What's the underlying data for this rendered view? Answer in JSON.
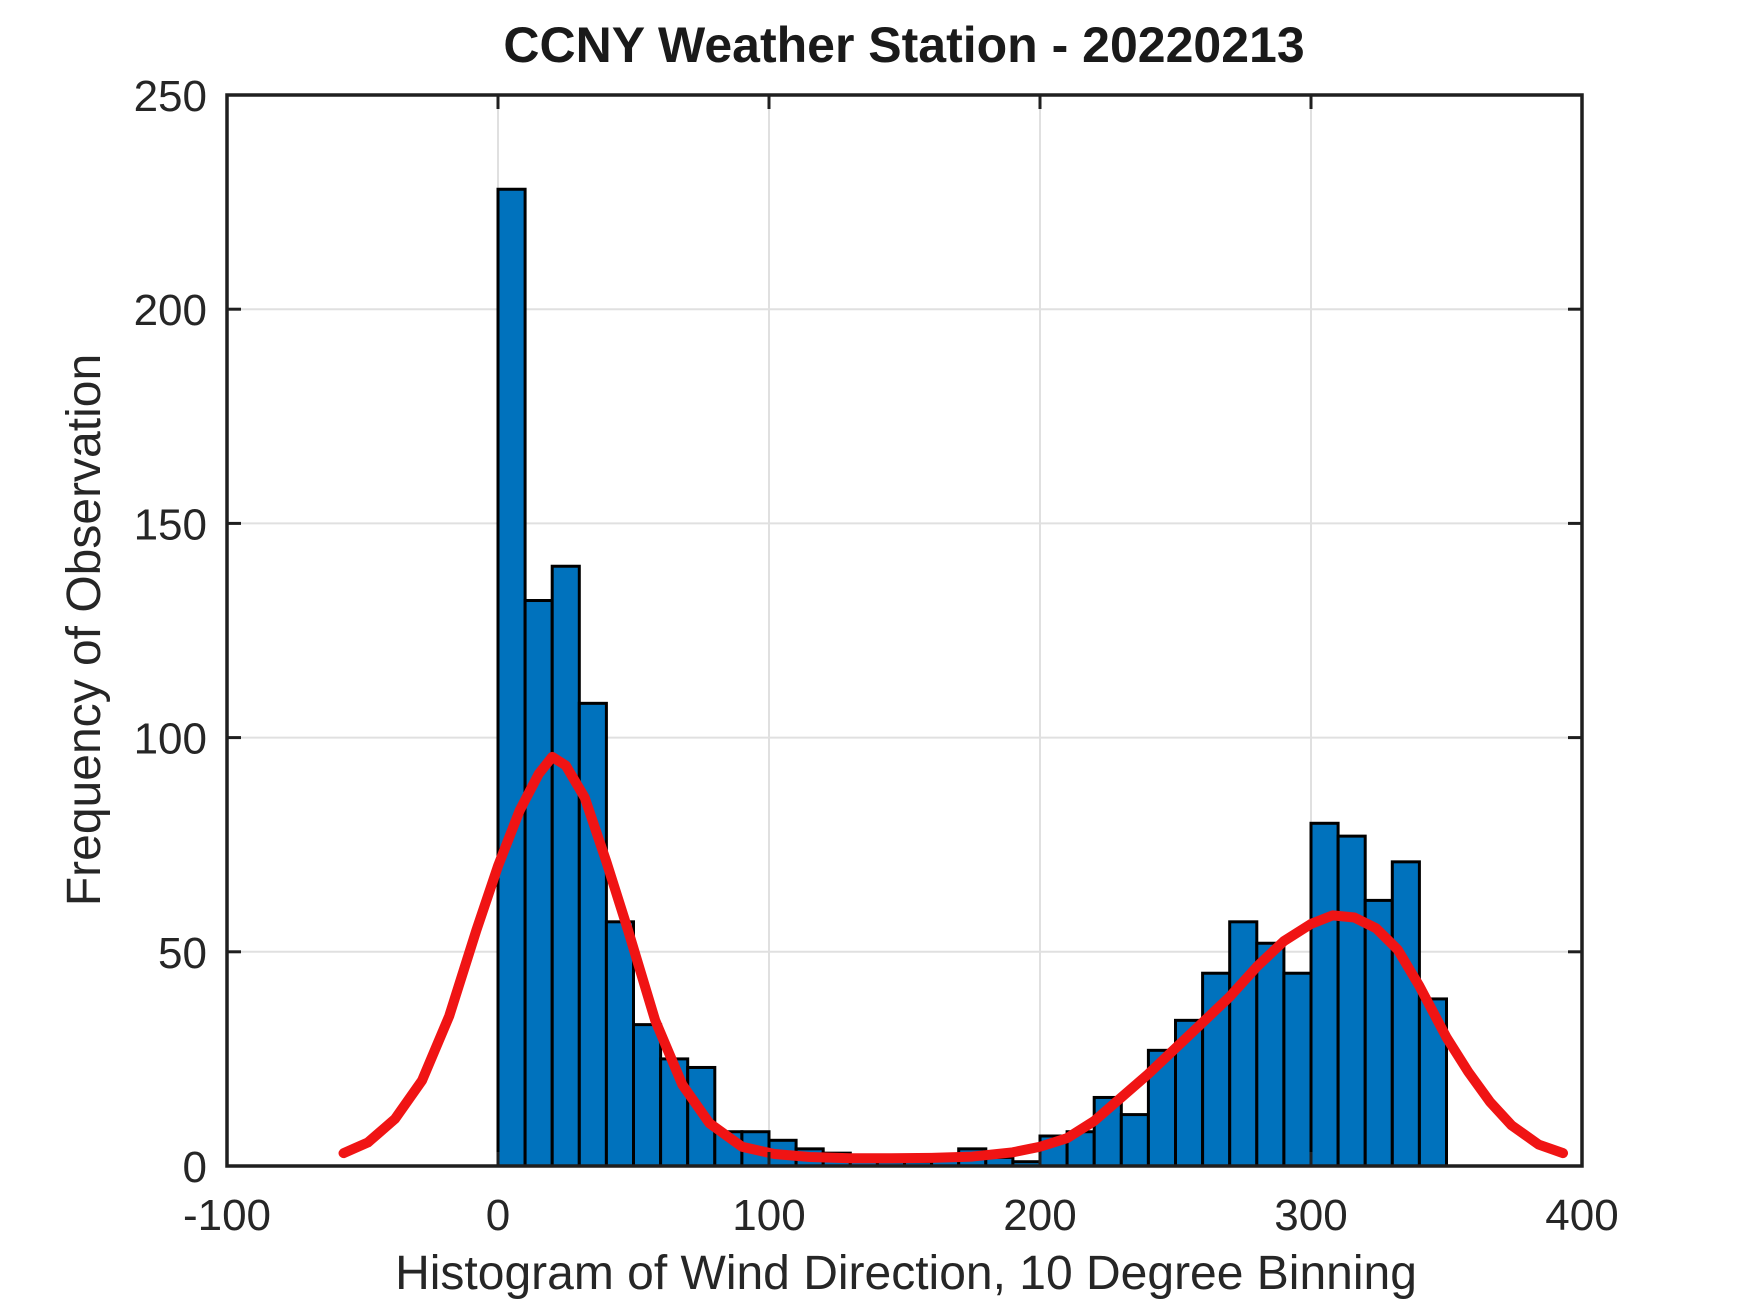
{
  "figure": {
    "title": "CCNY Weather Station - 20220213",
    "xlabel": "Histogram of Wind Direction, 10 Degree Binning",
    "ylabel": "Frequency of Observation"
  },
  "chart_data": {
    "type": "bar",
    "title": "CCNY Weather Station - 20220213",
    "xlabel": "Histogram of Wind Direction, 10 Degree Binning",
    "ylabel": "Frequency of Observation",
    "xlim": [
      -100,
      400
    ],
    "ylim": [
      0,
      250
    ],
    "x_ticks": [
      -100,
      0,
      100,
      200,
      300,
      400
    ],
    "y_ticks": [
      0,
      50,
      100,
      150,
      200,
      250
    ],
    "grid": true,
    "legend": "none",
    "colors": {
      "bar_fill": "#0072BD",
      "bar_edge": "#000000",
      "curve": "#f01414",
      "grid": "#e0e0e0",
      "axis": "#1f1f1f",
      "background": "#ffffff"
    },
    "histogram": {
      "bin_start_deg": 0,
      "bin_width_deg": 10,
      "counts": [
        228,
        132,
        140,
        108,
        57,
        33,
        25,
        23,
        8,
        8,
        6,
        4,
        3,
        2,
        1,
        1,
        2,
        4,
        2,
        1,
        7,
        8,
        16,
        12,
        27,
        34,
        45,
        57,
        52,
        45,
        80,
        77,
        62,
        71,
        39
      ]
    },
    "fit_curve": {
      "description": "bimodal fit, peak ~95.5 near 20 deg and ~58.5 near 308 deg",
      "x": [
        -57,
        -48,
        -38,
        -28,
        -18,
        -8,
        0,
        8,
        15,
        20,
        25,
        32,
        40,
        48,
        58,
        68,
        78,
        90,
        102,
        115,
        130,
        145,
        160,
        175,
        190,
        200,
        210,
        220,
        230,
        240,
        250,
        260,
        270,
        280,
        290,
        300,
        308,
        316,
        324,
        332,
        340,
        350,
        358,
        366,
        374,
        384,
        393
      ],
      "y": [
        3,
        5.5,
        11,
        20,
        35,
        55,
        70,
        83,
        91.5,
        95.5,
        93.5,
        86,
        71,
        55,
        34,
        19,
        10,
        4.5,
        2.8,
        2.1,
        1.8,
        1.8,
        1.9,
        2.2,
        3.2,
        4.5,
        6.5,
        10.5,
        16,
        21.5,
        27.5,
        33.5,
        39.5,
        46.5,
        52.5,
        56.5,
        58.5,
        58,
        55.5,
        50.5,
        42,
        30,
        22,
        15,
        9.5,
        5,
        3
      ]
    }
  }
}
